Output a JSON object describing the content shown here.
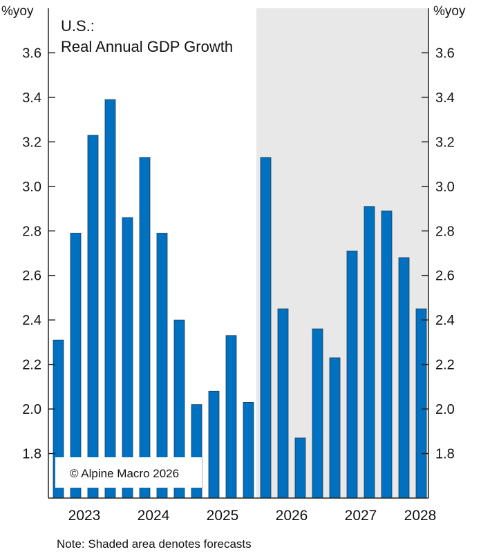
{
  "chart_data": {
    "type": "bar",
    "title": "U.S.:",
    "subtitle": "Real Annual GDP Growth",
    "ylabel_left": "%yoy",
    "ylabel_right": "%yoy",
    "ylim": [
      1.6,
      3.8
    ],
    "yticks": [
      "1.8",
      "2.0",
      "2.2",
      "2.4",
      "2.6",
      "2.8",
      "3.0",
      "3.2",
      "3.4",
      "3.6"
    ],
    "xtick_labels": [
      "2023",
      "2024",
      "2025",
      "2026",
      "2027",
      "2028"
    ],
    "values": [
      2.31,
      2.79,
      3.23,
      3.39,
      2.86,
      3.13,
      2.79,
      2.4,
      2.02,
      2.08,
      2.33,
      2.03,
      3.13,
      2.45,
      1.87,
      2.36,
      2.23,
      2.71,
      2.91,
      2.89,
      2.68,
      2.45
    ],
    "forecast_start_index": 12,
    "grid": false,
    "bar_color": "#0070c0",
    "shade_color": "#e8e8e8",
    "copyright": "© Alpine Macro 2026",
    "note": "Note: Shaded area denotes forecasts"
  }
}
